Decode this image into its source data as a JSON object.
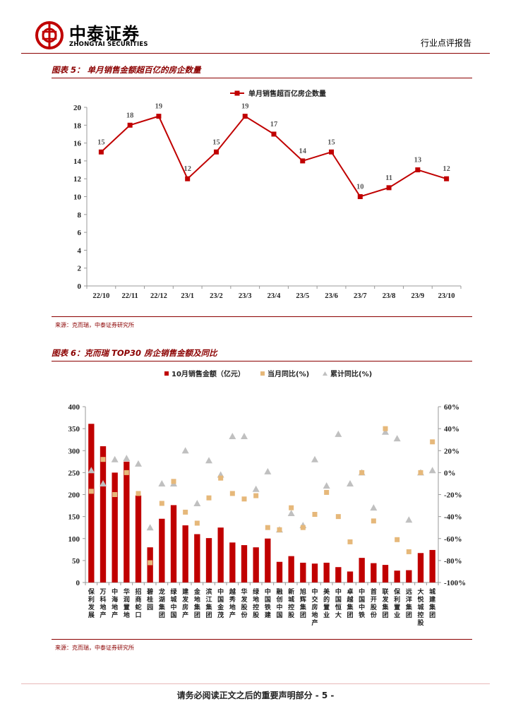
{
  "header": {
    "logo_cn": "中泰证券",
    "logo_en": "ZHONGTAI SECURITIES",
    "report_type": "行业点评报告"
  },
  "figure5": {
    "title": "图表 5： 单月销售金额超百亿的房企数量",
    "source": "来源：克而瑞，中泰证券研究所"
  },
  "figure6": {
    "title": "图表 6：克而瑞 TOP30 房企销售金额及同比",
    "source": "来源：克而瑞，中泰证券研究所"
  },
  "footer": {
    "text": "请务必阅读正文之后的重要声明部分 - 5 -"
  },
  "colors": {
    "brand": "#c00000",
    "accent_dark": "#8b0000",
    "yoy_month": "#e6b87a",
    "yoy_cum": "#c0c0c0"
  },
  "chart_data": [
    {
      "type": "line",
      "categories": [
        "22/10",
        "22/11",
        "22/12",
        "23/1",
        "23/2",
        "23/3",
        "23/4",
        "23/5",
        "23/6",
        "23/7",
        "23/8",
        "23/9",
        "23/10"
      ],
      "series": [
        {
          "name": "单月销售超百亿房企数量",
          "values": [
            15,
            18,
            19,
            12,
            15,
            19,
            17,
            14,
            15,
            10,
            11,
            13,
            12
          ]
        }
      ],
      "ylim": [
        0,
        20
      ],
      "yticks": [
        0,
        2,
        4,
        6,
        8,
        10,
        12,
        14,
        16,
        18,
        20
      ],
      "legend": "top",
      "grid": false
    },
    {
      "type": "bar",
      "categories": [
        "保利发展",
        "万科地产",
        "中海地产",
        "华润置地",
        "招商蛇口",
        "碧桂园",
        "龙湖集团",
        "绿城中国",
        "建发房产",
        "金地集团",
        "滨江集团",
        "中国金茂",
        "越秀地产",
        "华发股份",
        "绿地控股",
        "中国铁建",
        "融创中国",
        "新城控股",
        "旭辉集团",
        "中交房地产",
        "美的置业",
        "中国恒大",
        "卓越集团",
        "中国中铁",
        "首开股份",
        "联发集团",
        "保利置业",
        "远洋集团",
        "大悦城控股",
        "城建集团"
      ],
      "series": [
        {
          "name": "10月销售金额（亿元）",
          "axis": "left",
          "type": "bar",
          "values": [
            361,
            310,
            250,
            275,
            198,
            80,
            145,
            176,
            130,
            110,
            101,
            125,
            91,
            85,
            80,
            100,
            47,
            60,
            45,
            43,
            45,
            35,
            25,
            56,
            44,
            40,
            27,
            28,
            67,
            74
          ]
        },
        {
          "name": "当月同比(%)",
          "axis": "right",
          "type": "scatter",
          "marker": "square",
          "values": [
            -17,
            12,
            -20,
            0,
            -19,
            -82,
            -28,
            -8,
            -36,
            -46,
            -23,
            -5,
            -19,
            -24,
            -21,
            -50,
            -52,
            -32,
            -50,
            -38,
            -18,
            -40,
            -63,
            0,
            -44,
            40,
            -61,
            -72,
            0,
            28
          ]
        },
        {
          "name": "累计同比(%)",
          "axis": "right",
          "type": "scatter",
          "marker": "triangle",
          "values": [
            2,
            -10,
            12,
            13,
            8,
            -50,
            -10,
            -10,
            20,
            -28,
            11,
            -2,
            33,
            33,
            -15,
            1,
            -52,
            -37,
            -48,
            12,
            -12,
            35,
            -10,
            0,
            -32,
            37,
            31,
            -43,
            0,
            2
          ]
        }
      ],
      "ylim_left": [
        0,
        400
      ],
      "yticks_left": [
        0,
        50,
        100,
        150,
        200,
        250,
        300,
        350,
        400
      ],
      "ylim_right": [
        -100,
        60
      ],
      "yticks_right": [
        "-100%",
        "-80%",
        "-60%",
        "-40%",
        "-20%",
        "0%",
        "20%",
        "40%",
        "60%"
      ],
      "legend": "top",
      "grid": false
    }
  ]
}
